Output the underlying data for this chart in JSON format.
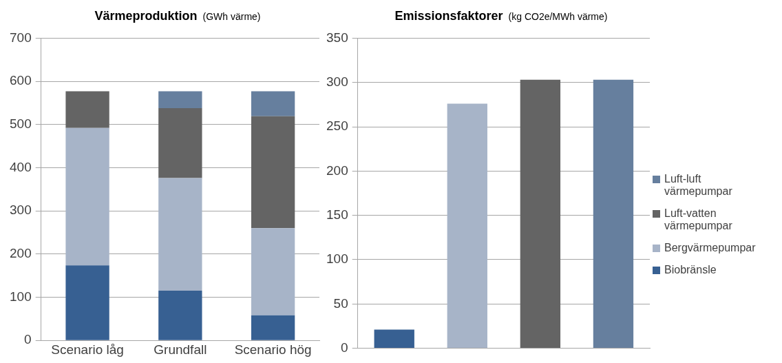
{
  "chart_data": [
    {
      "type": "bar",
      "title": "Värmeproduktion",
      "subtitle": "(GWh värme)",
      "categories": [
        "Scenario låg",
        "Grundfall",
        "Scenario hög"
      ],
      "stacked": true,
      "series": [
        {
          "color": "#376092",
          "values": [
            174,
            115,
            58
          ]
        },
        {
          "color": "#a7b4c8",
          "values": [
            318,
            261,
            202
          ]
        },
        {
          "color": "#646464",
          "values": [
            85,
            162,
            259
          ]
        },
        {
          "color": "#667f9e",
          "values": [
            0,
            39,
            58
          ]
        }
      ],
      "ylim": [
        0,
        700
      ],
      "yticks": [
        0,
        100,
        200,
        300,
        400,
        500,
        600,
        700
      ],
      "grid": "y",
      "legend": false
    },
    {
      "type": "bar",
      "title": "Emissionsfaktorer",
      "subtitle": "(kg CO2e/MWh värme)",
      "categories": [
        null,
        null,
        null,
        null
      ],
      "tick_labels": "y",
      "series": [
        {
          "name": "Biobränsle",
          "color": "#376092",
          "values": [
            21,
            null,
            null,
            null
          ]
        },
        {
          "name": "Bergvärmepumpar",
          "color": "#a7b4c8",
          "values": [
            null,
            276,
            null,
            null
          ]
        },
        {
          "name": "Luft-vatten värmepumpar",
          "color": "#646464",
          "values": [
            null,
            null,
            303,
            null
          ]
        },
        {
          "name": "Luft-luft värmepumpar",
          "color": "#667f9e",
          "values": [
            null,
            null,
            null,
            303
          ]
        }
      ],
      "ylim": [
        0,
        350
      ],
      "yticks": [
        0,
        50,
        100,
        150,
        200,
        250,
        300,
        350
      ],
      "grid": "y",
      "legend": "right"
    }
  ]
}
